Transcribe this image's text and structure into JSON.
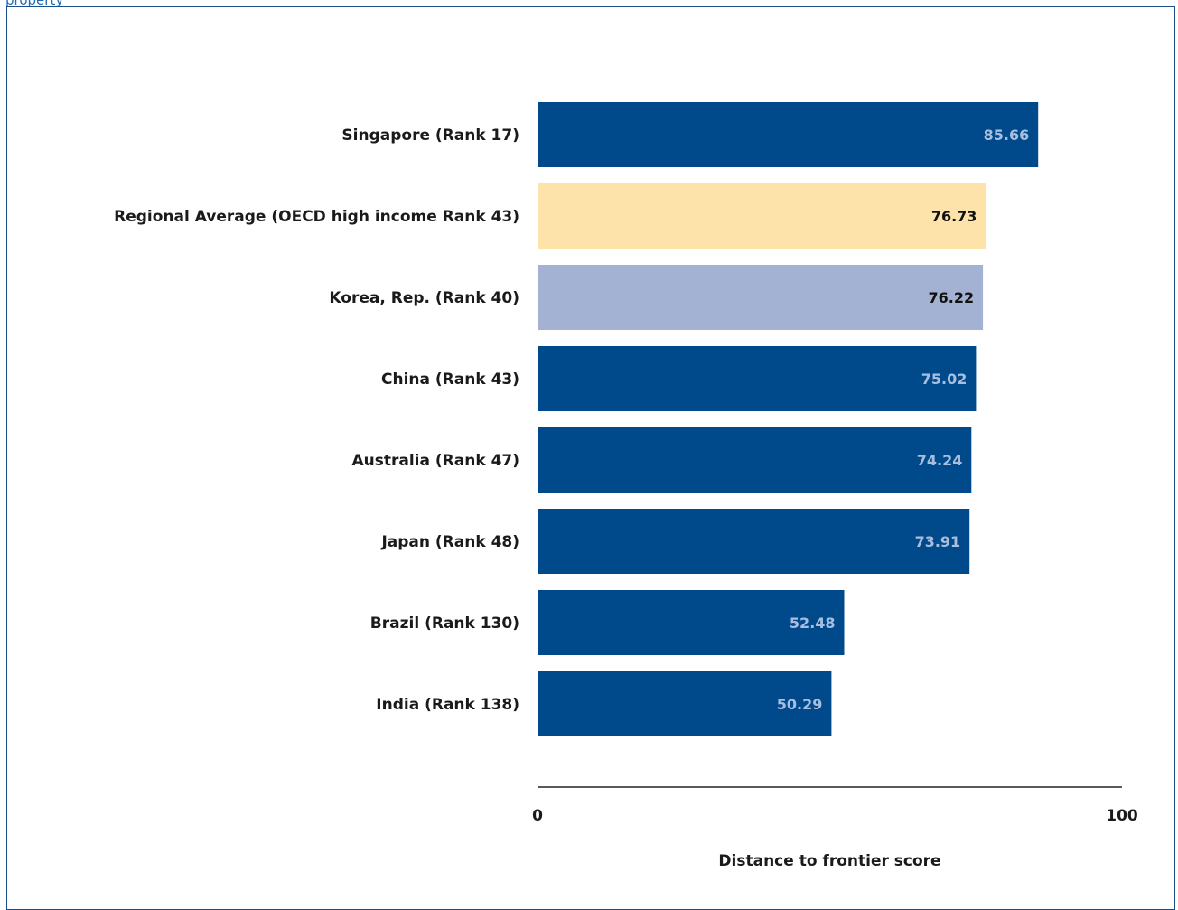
{
  "caption": "property",
  "colors": {
    "primary_bar": "#004a8c",
    "regional_bar": "#fde2aa",
    "highlight_bar": "#a3b2d3",
    "primary_value_text": "#a8bede",
    "dark_value_text": "#111111",
    "frame": "#1a4d8c",
    "caption": "#1f6db5"
  },
  "chart_data": {
    "type": "bar",
    "orientation": "horizontal",
    "categories": [
      "Singapore (Rank 17)",
      "Regional Average (OECD high income Rank 43)",
      "Korea, Rep. (Rank 40)",
      "China (Rank 43)",
      "Australia (Rank 47)",
      "Japan (Rank 48)",
      "Brazil (Rank 130)",
      "India (Rank 138)"
    ],
    "values": [
      85.66,
      76.73,
      76.22,
      75.02,
      74.24,
      73.91,
      52.48,
      50.29
    ],
    "value_labels": [
      "85.66",
      "76.73",
      "76.22",
      "75.02",
      "74.24",
      "73.91",
      "52.48",
      "50.29"
    ],
    "bar_styles": [
      "primary",
      "regional",
      "highlight",
      "primary",
      "primary",
      "primary",
      "primary",
      "primary"
    ],
    "xlim": [
      0,
      100
    ],
    "x_ticks": [
      "0",
      "100"
    ],
    "xlabel": "Distance to frontier score",
    "ylabel": "",
    "title": "",
    "grid": false,
    "legend": "none"
  }
}
